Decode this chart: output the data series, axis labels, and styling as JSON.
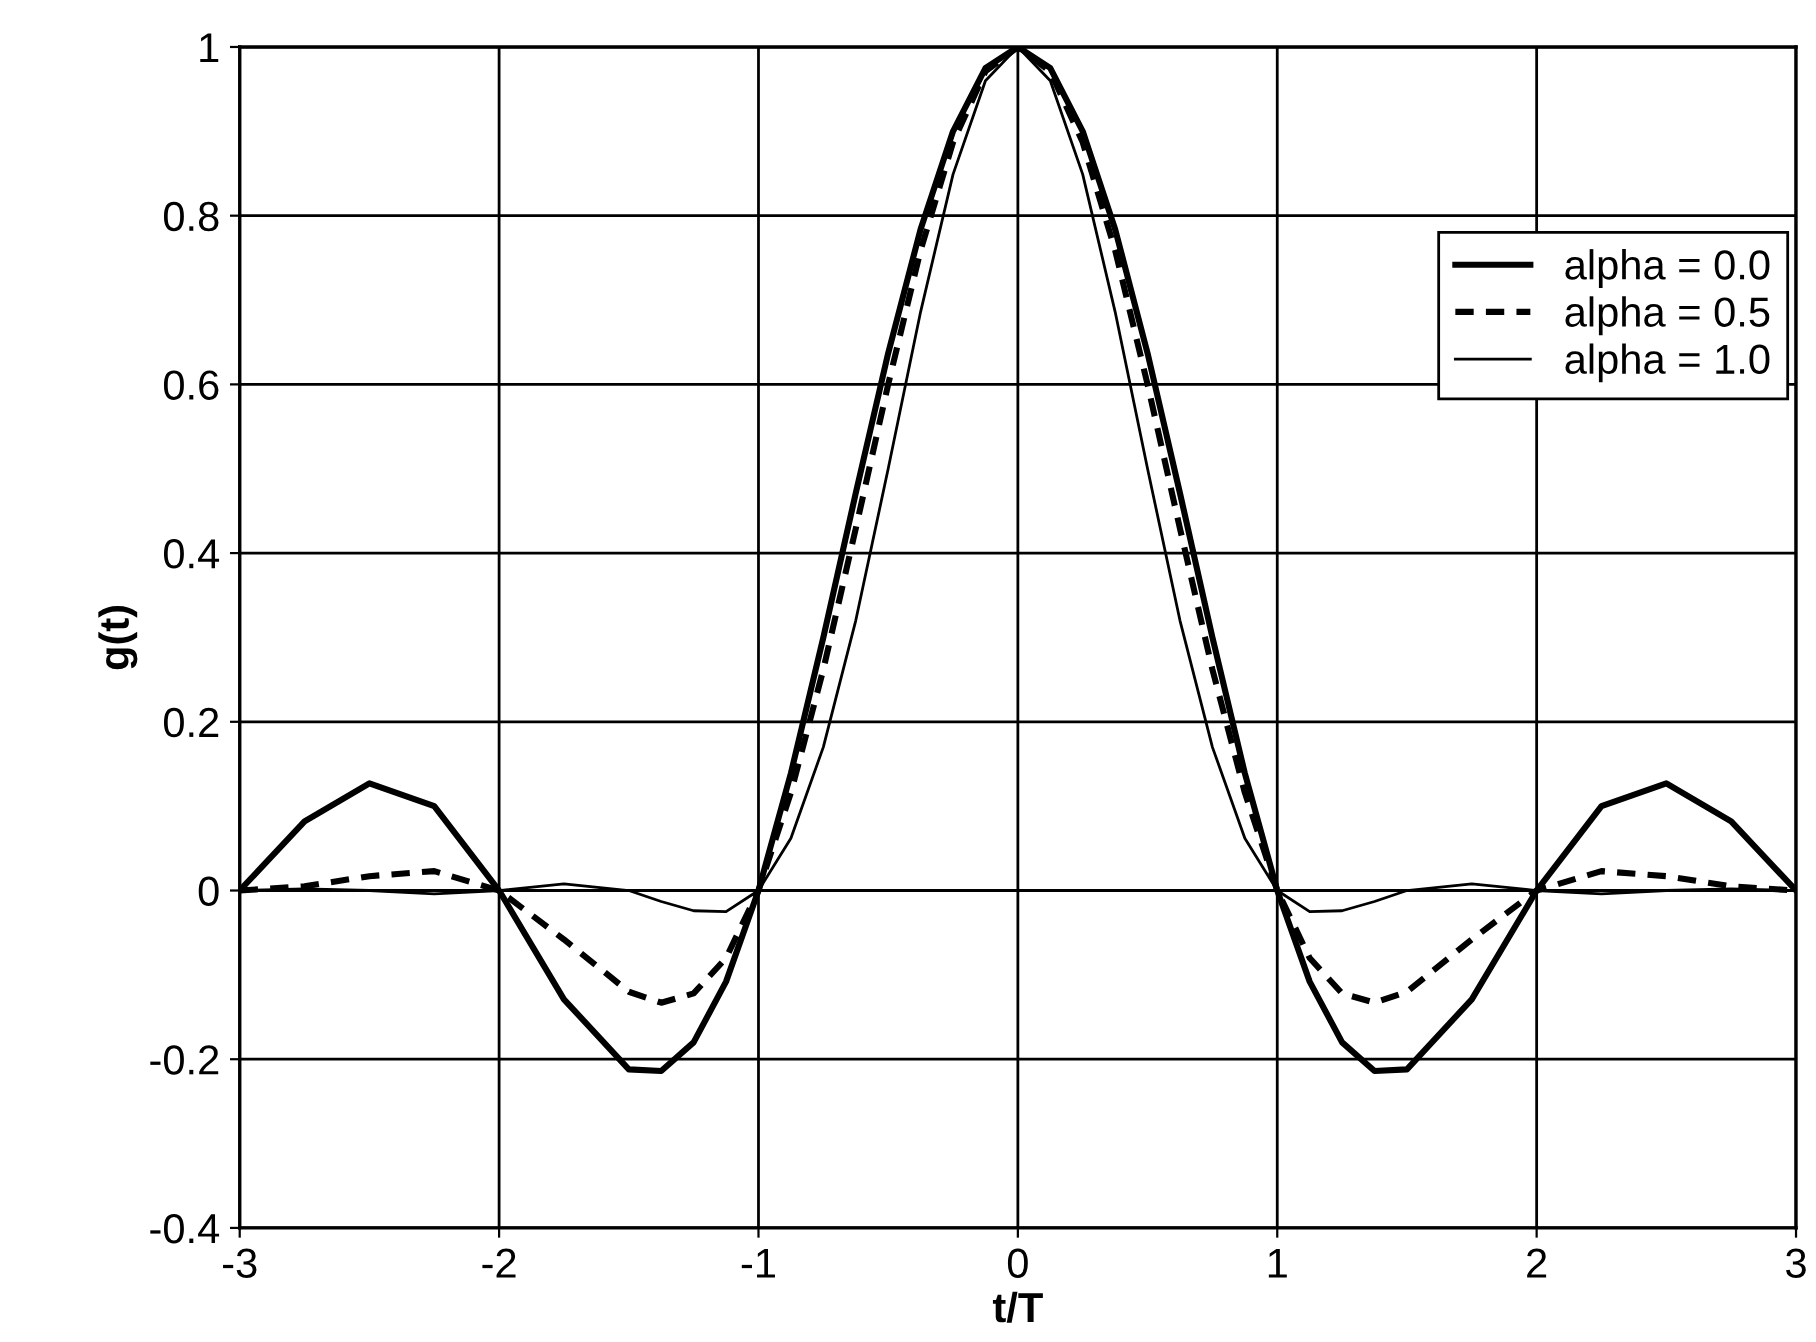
{
  "chart_data": {
    "type": "line",
    "xlabel": "t/T",
    "ylabel": "g(t)",
    "x": [
      -3,
      -2.75,
      -2.5,
      -2.25,
      -2,
      -1.75,
      -1.5,
      -1.375,
      -1.25,
      -1.125,
      -1,
      -0.875,
      -0.75,
      -0.625,
      -0.5,
      -0.375,
      -0.25,
      -0.125,
      0,
      0.125,
      0.25,
      0.375,
      0.5,
      0.625,
      0.75,
      0.875,
      1,
      1.125,
      1.25,
      1.375,
      1.5,
      1.75,
      2,
      2.25,
      2.5,
      2.75,
      3
    ],
    "series": [
      {
        "name": "alpha = 0.0",
        "color": "#000000",
        "line_style": "solid",
        "values": [
          0,
          0.082,
          0.127,
          0.1,
          0,
          -0.129,
          -0.212,
          -0.214,
          -0.18,
          -0.108,
          0,
          0.139,
          0.3,
          0.471,
          0.637,
          0.784,
          0.9,
          0.975,
          1,
          0.975,
          0.9,
          0.784,
          0.637,
          0.471,
          0.3,
          0.139,
          0,
          -0.108,
          -0.18,
          -0.214,
          -0.212,
          -0.129,
          0,
          0.1,
          0.127,
          0.082,
          0
        ]
      },
      {
        "name": "alpha = 0.5",
        "color": "#000000",
        "line_style": "dashed",
        "values": [
          0,
          0.005,
          0.017,
          0.023,
          0,
          -0.058,
          -0.12,
          -0.133,
          -0.122,
          -0.08,
          0,
          0.116,
          0.262,
          0.429,
          0.6,
          0.759,
          0.887,
          0.971,
          1,
          0.971,
          0.887,
          0.759,
          0.6,
          0.429,
          0.262,
          0.116,
          0,
          -0.08,
          -0.122,
          -0.133,
          -0.12,
          -0.058,
          0,
          0.023,
          0.017,
          0.005,
          0
        ]
      },
      {
        "name": "alpha = 1.0",
        "color": "#000000",
        "line_style": "solid",
        "values": [
          0,
          0.002,
          0,
          -0.004,
          0,
          0.008,
          0,
          -0.013,
          -0.024,
          -0.025,
          0,
          0.062,
          0.17,
          0.32,
          0.5,
          0.686,
          0.849,
          0.96,
          1,
          0.96,
          0.849,
          0.686,
          0.5,
          0.32,
          0.17,
          0.062,
          0,
          -0.025,
          -0.024,
          -0.013,
          0,
          0.008,
          0,
          -0.004,
          0,
          0.002,
          0
        ]
      }
    ],
    "xlim": [
      -3,
      3
    ],
    "xticks": [
      -3,
      -2,
      -1,
      0,
      1,
      2,
      3
    ],
    "ylim": [
      -0.4,
      1
    ],
    "yticks": [
      -0.4,
      -0.2,
      0,
      0.2,
      0.4,
      0.6,
      0.8,
      1
    ],
    "grid": true,
    "legend": "top right"
  }
}
